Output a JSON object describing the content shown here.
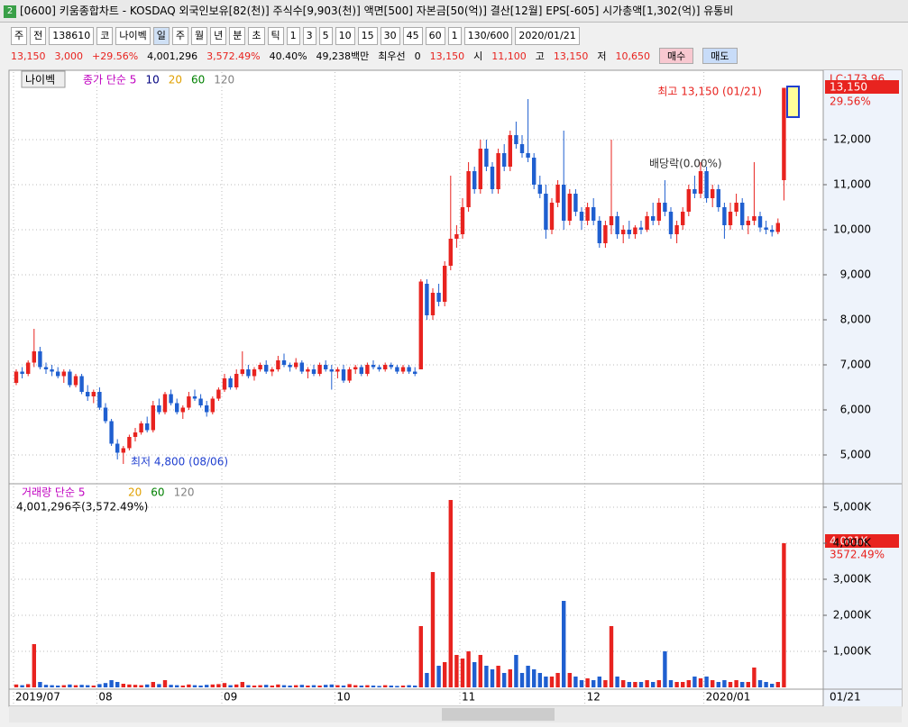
{
  "window": {
    "title": "[0600] 키움종합차트 - KOSDAQ 외국인보유[82(천)] 주식수[9,903(천)] 액면[500] 자본금[50(억)] 결산[12월] EPS[-605] 시가총액[1,302(억)] 유통비"
  },
  "toolbar": [
    "주",
    "전",
    "138610",
    "코",
    "나이벡",
    "일",
    "주",
    "월",
    "년",
    "분",
    "초",
    "틱",
    "1",
    "3",
    "5",
    "10",
    "15",
    "30",
    "45",
    "60",
    "1",
    "130/600",
    "2020/01/21"
  ],
  "info_bar": [
    "13,150",
    "3,000",
    "+29.56%",
    "4,001,296",
    "3,572.49%",
    "40.40%",
    "49,238백만",
    "최우선",
    "0",
    "13,150",
    "시",
    "11,100",
    "고",
    "13,150",
    "저",
    "10,650",
    "매수",
    "매도"
  ],
  "chart_data": [
    {
      "type": "candlestick",
      "name": "나이벡",
      "legend": [
        {
          "name": "종가 단순 5",
          "color": "#c000c0"
        },
        {
          "name": "10",
          "color": "#000080"
        },
        {
          "name": "20",
          "color": "#e0a000"
        },
        {
          "name": "60",
          "color": "#008000"
        },
        {
          "name": "120",
          "color": "#808080"
        }
      ],
      "up_color": "#e8231f",
      "down_color": "#1f5fd0",
      "grid": true,
      "ylim": [
        4400,
        13500
      ],
      "yticks": [
        {
          "value": 5000,
          "label": "5,000"
        },
        {
          "value": 6000,
          "label": "6,000"
        },
        {
          "value": 7000,
          "label": "7,000"
        },
        {
          "value": 8000,
          "label": "8,000"
        },
        {
          "value": 9000,
          "label": "9,000"
        },
        {
          "value": 10000,
          "label": "10,000"
        },
        {
          "value": 11000,
          "label": "11,000"
        },
        {
          "value": 12000,
          "label": "12,000"
        }
      ],
      "annotations": [
        "최고 13,150 (01/21)",
        "최저 4,800 (08/06)",
        "배당락(0.00%)"
      ],
      "lc_label": "LC:173.96",
      "last_value_label": "13,150",
      "last_change_label": "29.56%",
      "ohlc": [
        [
          6600,
          6900,
          6550,
          6850
        ],
        [
          6850,
          6950,
          6700,
          6800
        ],
        [
          6800,
          7100,
          6750,
          7050
        ],
        [
          7050,
          7800,
          6950,
          7300
        ],
        [
          7300,
          7400,
          6900,
          6950
        ],
        [
          6950,
          7050,
          6800,
          6900
        ],
        [
          6900,
          7000,
          6750,
          6850
        ],
        [
          6850,
          6950,
          6700,
          6750
        ],
        [
          6750,
          6900,
          6600,
          6850
        ],
        [
          6850,
          6900,
          6500,
          6550
        ],
        [
          6550,
          6800,
          6500,
          6750
        ],
        [
          6750,
          6800,
          6350,
          6400
        ],
        [
          6400,
          6550,
          6200,
          6300
        ],
        [
          6300,
          6450,
          6150,
          6400
        ],
        [
          6400,
          6500,
          6000,
          6050
        ],
        [
          6050,
          6150,
          5700,
          5750
        ],
        [
          5750,
          5800,
          5200,
          5250
        ],
        [
          5250,
          5350,
          4900,
          5050
        ],
        [
          5050,
          5200,
          4800,
          5150
        ],
        [
          5150,
          5450,
          5100,
          5400
        ],
        [
          5400,
          5600,
          5300,
          5500
        ],
        [
          5500,
          5750,
          5450,
          5700
        ],
        [
          5700,
          5850,
          5500,
          5550
        ],
        [
          5550,
          6200,
          5500,
          6100
        ],
        [
          6100,
          6250,
          5900,
          5950
        ],
        [
          5950,
          6400,
          5900,
          6350
        ],
        [
          6350,
          6450,
          6100,
          6150
        ],
        [
          6150,
          6250,
          5900,
          5950
        ],
        [
          5950,
          6100,
          5800,
          6050
        ],
        [
          6050,
          6400,
          6000,
          6300
        ],
        [
          6300,
          6450,
          6200,
          6250
        ],
        [
          6250,
          6350,
          6050,
          6100
        ],
        [
          6100,
          6200,
          5850,
          5950
        ],
        [
          5950,
          6300,
          5900,
          6250
        ],
        [
          6250,
          6500,
          6200,
          6450
        ],
        [
          6450,
          6800,
          6400,
          6700
        ],
        [
          6700,
          6750,
          6450,
          6500
        ],
        [
          6500,
          6900,
          6450,
          6800
        ],
        [
          6800,
          7300,
          6750,
          6900
        ],
        [
          6900,
          7000,
          6700,
          6750
        ],
        [
          6750,
          6950,
          6650,
          6900
        ],
        [
          6900,
          7050,
          6850,
          7000
        ],
        [
          7000,
          7100,
          6800,
          6850
        ],
        [
          6850,
          6950,
          6750,
          6900
        ],
        [
          6900,
          7200,
          6850,
          7100
        ],
        [
          7100,
          7250,
          6950,
          7000
        ],
        [
          7000,
          7050,
          6850,
          6950
        ],
        [
          6950,
          7150,
          6900,
          7050
        ],
        [
          7050,
          7100,
          6800,
          6850
        ],
        [
          6850,
          6950,
          6700,
          6900
        ],
        [
          6900,
          7000,
          6750,
          6800
        ],
        [
          6800,
          7050,
          6750,
          7000
        ],
        [
          7000,
          7100,
          6850,
          6900
        ],
        [
          6900,
          7000,
          6450,
          6850
        ],
        [
          6850,
          6950,
          6700,
          6900
        ],
        [
          6900,
          7000,
          6600,
          6650
        ],
        [
          6650,
          6950,
          6600,
          6900
        ],
        [
          6900,
          7000,
          6800,
          6950
        ],
        [
          6950,
          7000,
          6750,
          6800
        ],
        [
          6800,
          7050,
          6750,
          7000
        ],
        [
          7000,
          7100,
          6900,
          6950
        ],
        [
          6950,
          7000,
          6850,
          6900
        ],
        [
          6900,
          7050,
          6850,
          7000
        ],
        [
          7000,
          7050,
          6900,
          6950
        ],
        [
          6950,
          7000,
          6800,
          6850
        ],
        [
          6850,
          7000,
          6800,
          6950
        ],
        [
          6950,
          7000,
          6800,
          6850
        ],
        [
          6850,
          6950,
          6750,
          6800
        ],
        [
          6900,
          8900,
          6900,
          8850
        ],
        [
          8800,
          8900,
          8000,
          8100
        ],
        [
          8100,
          8700,
          8000,
          8600
        ],
        [
          8600,
          8800,
          8300,
          8400
        ],
        [
          8400,
          9300,
          8300,
          9200
        ],
        [
          9200,
          11200,
          9100,
          9800
        ],
        [
          9800,
          10100,
          9600,
          9900
        ],
        [
          9900,
          10700,
          9800,
          10500
        ],
        [
          10500,
          11500,
          10400,
          11300
        ],
        [
          11300,
          11400,
          10800,
          10900
        ],
        [
          10900,
          12000,
          10800,
          11800
        ],
        [
          11800,
          12000,
          11300,
          11400
        ],
        [
          11400,
          11500,
          10800,
          10900
        ],
        [
          10900,
          11800,
          10800,
          11700
        ],
        [
          11700,
          11900,
          11300,
          11400
        ],
        [
          11400,
          12200,
          11300,
          12100
        ],
        [
          12100,
          12400,
          11800,
          11900
        ],
        [
          11900,
          12100,
          11600,
          11700
        ],
        [
          11700,
          12900,
          11500,
          11600
        ],
        [
          11600,
          11700,
          10900,
          11000
        ],
        [
          11000,
          11200,
          10700,
          10800
        ],
        [
          10800,
          11000,
          9800,
          10000
        ],
        [
          10000,
          10700,
          9900,
          10600
        ],
        [
          10600,
          11100,
          10500,
          11000
        ],
        [
          11000,
          12200,
          10000,
          10200
        ],
        [
          10200,
          10900,
          10100,
          10800
        ],
        [
          10800,
          10900,
          10300,
          10400
        ],
        [
          10400,
          10500,
          10000,
          10200
        ],
        [
          10200,
          10600,
          10100,
          10500
        ],
        [
          10500,
          10700,
          10100,
          10200
        ],
        [
          10200,
          10300,
          9600,
          9700
        ],
        [
          9700,
          10200,
          9600,
          10100
        ],
        [
          10100,
          12000,
          9900,
          10300
        ],
        [
          10300,
          10400,
          9800,
          9900
        ],
        [
          9900,
          10100,
          9700,
          10000
        ],
        [
          10000,
          10200,
          9800,
          9900
        ],
        [
          9900,
          10100,
          9800,
          10050
        ],
        [
          10050,
          10200,
          9900,
          10000
        ],
        [
          10000,
          10400,
          9950,
          10300
        ],
        [
          10300,
          10600,
          10100,
          10200
        ],
        [
          10200,
          10700,
          10100,
          10600
        ],
        [
          10600,
          11100,
          10300,
          10400
        ],
        [
          10400,
          10500,
          9800,
          9900
        ],
        [
          9900,
          10200,
          9700,
          10100
        ],
        [
          10100,
          10500,
          10000,
          10400
        ],
        [
          10400,
          11000,
          10300,
          10900
        ],
        [
          10900,
          11200,
          10700,
          10800
        ],
        [
          10800,
          11500,
          10700,
          11300
        ],
        [
          11300,
          11400,
          10600,
          10700
        ],
        [
          10700,
          11000,
          10500,
          10900
        ],
        [
          10900,
          11000,
          10400,
          10500
        ],
        [
          10500,
          10600,
          9800,
          10100
        ],
        [
          10100,
          10600,
          10000,
          10400
        ],
        [
          10400,
          10800,
          10300,
          10600
        ],
        [
          10600,
          10700,
          10000,
          10100
        ],
        [
          10100,
          10300,
          9900,
          10200
        ],
        [
          10200,
          11500,
          10100,
          10300
        ],
        [
          10300,
          10400,
          9950,
          10050
        ],
        [
          10050,
          10200,
          9900,
          10000
        ],
        [
          10000,
          10100,
          9850,
          9950
        ],
        [
          9950,
          10250,
          9900,
          10150
        ],
        [
          11100,
          13150,
          10650,
          13150
        ]
      ]
    },
    {
      "type": "bar",
      "name": "거래량 단순 5",
      "legend": [
        {
          "name": "20",
          "color": "#e0a000"
        },
        {
          "name": "60",
          "color": "#008000"
        },
        {
          "name": "120",
          "color": "#808080"
        }
      ],
      "info": "4,001,296주(3,572.49%)",
      "last_value_label": "4,001K",
      "last_change_label": "3572.49%",
      "cursor_label": "01/21",
      "grid": true,
      "ylim": [
        0,
        5575
      ],
      "yticks": [
        {
          "value": 1000,
          "label": "1,000K"
        },
        {
          "value": 2000,
          "label": "2,000K"
        },
        {
          "value": 3000,
          "label": "3,000K"
        },
        {
          "value": 4000,
          "label": "4,000K"
        },
        {
          "value": 5000,
          "label": "5,000K"
        }
      ],
      "categories": [
        "2019/07",
        null,
        null,
        null,
        null,
        null,
        null,
        null,
        null,
        null,
        null,
        null,
        null,
        null,
        "08",
        null,
        null,
        null,
        null,
        null,
        null,
        null,
        null,
        null,
        null,
        null,
        null,
        null,
        null,
        null,
        null,
        null,
        null,
        null,
        null,
        "09",
        null,
        null,
        null,
        null,
        null,
        null,
        null,
        null,
        null,
        null,
        null,
        null,
        null,
        null,
        null,
        null,
        null,
        null,
        "10",
        null,
        null,
        null,
        null,
        null,
        null,
        null,
        null,
        null,
        null,
        null,
        null,
        null,
        null,
        null,
        null,
        null,
        null,
        null,
        null,
        "11",
        null,
        null,
        null,
        null,
        null,
        null,
        null,
        null,
        null,
        null,
        null,
        null,
        null,
        null,
        null,
        null,
        null,
        null,
        null,
        null,
        "12",
        null,
        null,
        null,
        null,
        null,
        null,
        null,
        null,
        null,
        null,
        null,
        null,
        null,
        null,
        null,
        null,
        null,
        null,
        null,
        "2020/01",
        null,
        null,
        null,
        null,
        null,
        null,
        null,
        null,
        null,
        null,
        null,
        null,
        null
      ],
      "values": [
        80,
        60,
        90,
        1200,
        150,
        70,
        60,
        50,
        60,
        80,
        60,
        70,
        60,
        50,
        90,
        120,
        200,
        150,
        100,
        80,
        70,
        60,
        80,
        150,
        90,
        200,
        70,
        60,
        50,
        80,
        60,
        50,
        70,
        80,
        90,
        120,
        60,
        80,
        150,
        60,
        50,
        60,
        70,
        50,
        80,
        60,
        50,
        60,
        70,
        50,
        60,
        50,
        70,
        80,
        60,
        50,
        90,
        60,
        50,
        60,
        50,
        40,
        60,
        50,
        40,
        50,
        60,
        50,
        1700,
        400,
        3200,
        600,
        700,
        5200,
        900,
        800,
        1000,
        700,
        900,
        600,
        500,
        600,
        400,
        500,
        900,
        400,
        600,
        500,
        400,
        300,
        300,
        400,
        2400,
        400,
        300,
        200,
        250,
        200,
        300,
        200,
        1700,
        300,
        200,
        150,
        150,
        150,
        200,
        150,
        200,
        1000,
        200,
        150,
        150,
        200,
        300,
        250,
        300,
        200,
        150,
        200,
        150,
        200,
        150,
        150,
        550,
        200,
        150,
        100,
        150,
        4001
      ]
    }
  ]
}
